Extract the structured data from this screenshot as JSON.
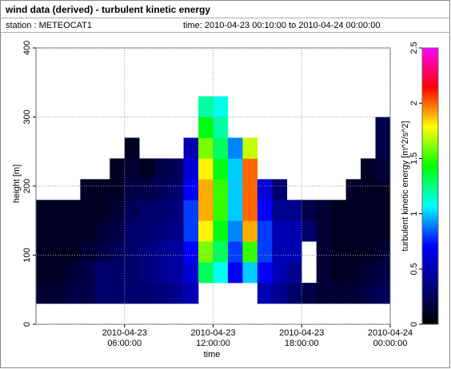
{
  "header": {
    "title": "wind data (derived) - turbulent kinetic energy",
    "station": "station : METEOCAT1",
    "time": "time: 2010-04-23 00:10:00 to 2010-04-24 00:00:00"
  },
  "chart_data": {
    "type": "heatmap",
    "xlabel": "time",
    "ylabel": "height [m]",
    "zlabel": "turbulent kinetic energy [m^2/s^2]",
    "xlim": [
      0,
      24
    ],
    "ylim": [
      0,
      400
    ],
    "zlim": [
      0,
      2.5
    ],
    "xticks": [
      {
        "value": 6,
        "label": "2010-04-23 06:00:00"
      },
      {
        "value": 12,
        "label": "2010-04-23 12:00:00"
      },
      {
        "value": 18,
        "label": "2010-04-23 18:00:00"
      },
      {
        "value": 24,
        "label": "2010-04-24 00:00:00"
      }
    ],
    "yticks": [
      0,
      100,
      200,
      300,
      400
    ],
    "zticks": [
      0,
      0.5,
      1,
      1.5,
      2,
      2.5
    ],
    "grid": true,
    "colormap": [
      "#000000",
      "#000080",
      "#0000ff",
      "#00ffff",
      "#00ff00",
      "#ffff00",
      "#ff0000",
      "#ff00ff"
    ],
    "x_bins": [
      0,
      1,
      2,
      3,
      4,
      5,
      6,
      7,
      8,
      9,
      10,
      11,
      12,
      13,
      14,
      15,
      16,
      17,
      18,
      19,
      20,
      21,
      22,
      23,
      24
    ],
    "y_bins": [
      30,
      60,
      90,
      120,
      150,
      180,
      210,
      240,
      270,
      300,
      330
    ],
    "z": [
      [
        0.15,
        0.1,
        0.1,
        0.1,
        0.1,
        null,
        null,
        null,
        null,
        null
      ],
      [
        0.15,
        0.1,
        0.1,
        0.1,
        0.1,
        null,
        null,
        null,
        null,
        null
      ],
      [
        0.2,
        0.15,
        0.1,
        0.1,
        0.1,
        null,
        null,
        null,
        null,
        null
      ],
      [
        0.2,
        0.2,
        0.15,
        0.1,
        0.1,
        0.1,
        null,
        null,
        null,
        null
      ],
      [
        0.3,
        0.3,
        0.2,
        0.15,
        0.1,
        0.1,
        null,
        null,
        null,
        null
      ],
      [
        0.3,
        0.3,
        0.25,
        0.2,
        0.15,
        0.1,
        0.1,
        null,
        null,
        null
      ],
      [
        0.3,
        0.3,
        0.3,
        0.3,
        0.25,
        0.2,
        0.15,
        0.1,
        null,
        null
      ],
      [
        0.3,
        0.35,
        0.35,
        0.3,
        0.3,
        0.2,
        0.1,
        null,
        null,
        null
      ],
      [
        0.35,
        0.4,
        0.4,
        0.35,
        0.3,
        0.25,
        0.2,
        null,
        null,
        null
      ],
      [
        0.4,
        0.45,
        0.45,
        0.4,
        0.35,
        0.3,
        0.25,
        null,
        null,
        null
      ],
      [
        0.5,
        0.6,
        0.7,
        0.8,
        0.8,
        0.7,
        0.6,
        0.5,
        null,
        null
      ],
      [
        null,
        1.3,
        1.6,
        1.8,
        1.9,
        1.9,
        1.8,
        1.6,
        1.4,
        1.2
      ],
      [
        null,
        1.1,
        1.3,
        1.4,
        1.5,
        1.5,
        1.4,
        1.3,
        1.2,
        1.1
      ],
      [
        null,
        0.7,
        0.8,
        0.9,
        1.0,
        1.0,
        1.0,
        0.9,
        null,
        null
      ],
      [
        null,
        1.0,
        1.5,
        1.9,
        2.0,
        2.0,
        2.0,
        1.7,
        null,
        null
      ],
      [
        0.5,
        0.7,
        0.8,
        0.8,
        0.7,
        0.6,
        null,
        null,
        null,
        null
      ],
      [
        0.4,
        0.5,
        0.5,
        0.5,
        0.4,
        0.3,
        null,
        null,
        null,
        null
      ],
      [
        0.3,
        0.4,
        0.5,
        0.5,
        0.4,
        null,
        null,
        null,
        null,
        null
      ],
      [
        0.2,
        null,
        null,
        0.3,
        0.2,
        null,
        null,
        null,
        null,
        null
      ],
      [
        0.15,
        0.15,
        0.15,
        0.15,
        0.15,
        null,
        null,
        null,
        null,
        null
      ],
      [
        0.15,
        0.1,
        0.1,
        0.1,
        0.1,
        null,
        null,
        null,
        null,
        null
      ],
      [
        0.15,
        0.1,
        0.1,
        0.1,
        0.1,
        0.1,
        null,
        null,
        null,
        null
      ],
      [
        0.2,
        0.15,
        0.1,
        0.1,
        0.1,
        0.1,
        0.1,
        null,
        null,
        null
      ],
      [
        0.25,
        0.2,
        0.15,
        0.1,
        0.1,
        0.1,
        0.15,
        0.2,
        0.2,
        null
      ]
    ]
  }
}
